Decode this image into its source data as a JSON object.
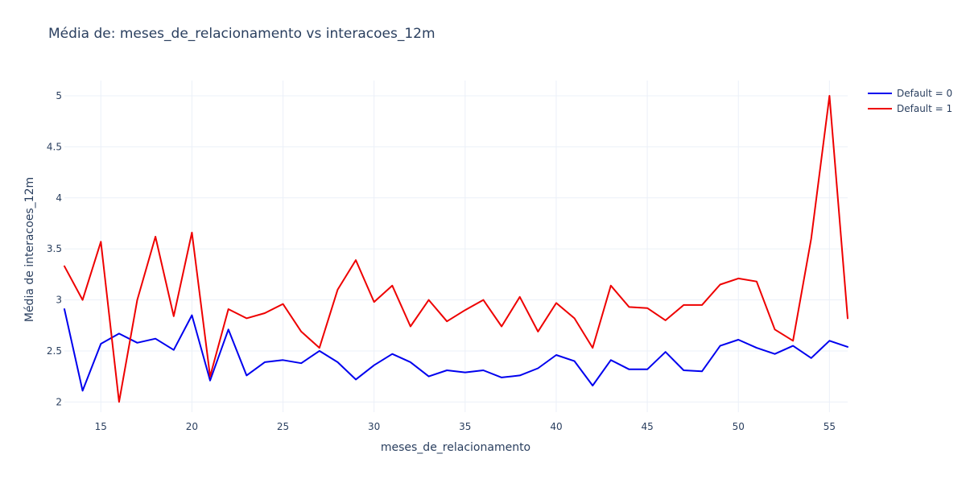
{
  "chart_data": {
    "type": "line",
    "title": "Média de: meses_de_relacionamento vs interacoes_12m",
    "xlabel": "meses_de_relacionamento",
    "ylabel": "Média de interacoes_12m",
    "xlim": [
      13,
      56
    ],
    "ylim": [
      1.9,
      5.15
    ],
    "xticks": [
      15,
      20,
      25,
      30,
      35,
      40,
      45,
      50,
      55
    ],
    "yticks": [
      2,
      2.5,
      3,
      3.5,
      4,
      4.5,
      5
    ],
    "ytick_labels": [
      "2",
      "2.5",
      "3",
      "3.5",
      "4",
      "4.5",
      "5"
    ],
    "grid": true,
    "legend_position": "top-right",
    "x": [
      13,
      14,
      15,
      16,
      17,
      18,
      19,
      20,
      21,
      22,
      23,
      24,
      25,
      26,
      27,
      28,
      29,
      30,
      31,
      32,
      33,
      34,
      35,
      36,
      37,
      38,
      39,
      40,
      41,
      42,
      43,
      44,
      45,
      46,
      47,
      48,
      49,
      50,
      51,
      52,
      53,
      54,
      55,
      56
    ],
    "series": [
      {
        "name": "Default = 0",
        "color": "#0000ee",
        "values": [
          2.91,
          2.11,
          2.57,
          2.67,
          2.58,
          2.62,
          2.51,
          2.85,
          2.21,
          2.71,
          2.26,
          2.39,
          2.41,
          2.38,
          2.5,
          2.39,
          2.22,
          2.36,
          2.47,
          2.39,
          2.25,
          2.31,
          2.29,
          2.31,
          2.24,
          2.26,
          2.33,
          2.46,
          2.4,
          2.16,
          2.41,
          2.32,
          2.32,
          2.49,
          2.31,
          2.3,
          2.55,
          2.61,
          2.53,
          2.47,
          2.55,
          2.43,
          2.6,
          2.54
        ]
      },
      {
        "name": "Default = 1",
        "color": "#ee0000",
        "values": [
          3.33,
          3.0,
          3.57,
          2.0,
          3.0,
          3.62,
          2.84,
          3.66,
          2.25,
          2.91,
          2.82,
          2.87,
          2.96,
          2.69,
          2.53,
          3.1,
          3.39,
          2.98,
          3.14,
          2.74,
          3.0,
          2.79,
          2.9,
          3.0,
          2.74,
          3.03,
          2.69,
          2.97,
          2.82,
          2.53,
          3.14,
          2.93,
          2.92,
          2.8,
          2.95,
          2.95,
          3.15,
          3.21,
          3.18,
          2.71,
          2.6,
          3.6,
          5.0,
          2.82
        ]
      }
    ]
  }
}
